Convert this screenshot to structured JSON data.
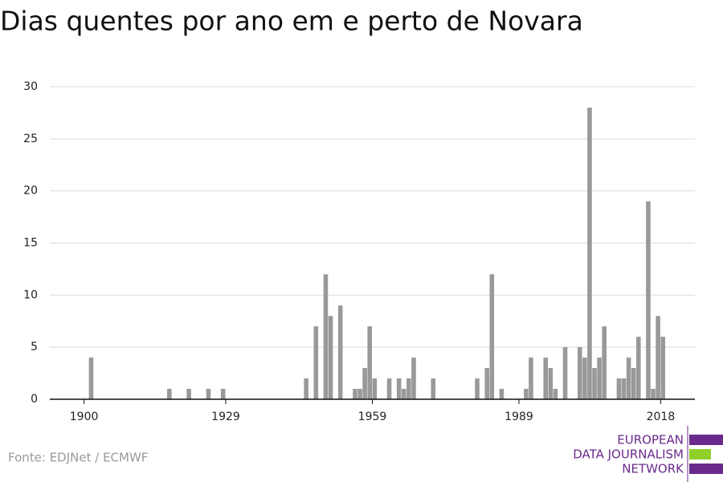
{
  "chart_data": {
    "type": "bar",
    "title": "Dias quentes por ano em e perto de Novara",
    "source": "Fonte: EDJNet / ECMWF",
    "logo": [
      "EUROPEAN",
      "DATA JOURNALISM",
      "NETWORK"
    ],
    "color": "#999999",
    "x": [
      1901,
      1917,
      1921,
      1925,
      1928,
      1945,
      1947,
      1949,
      1950,
      1952,
      1955,
      1956,
      1957,
      1958,
      1959,
      1962,
      1964,
      1965,
      1966,
      1967,
      1971,
      1980,
      1982,
      1983,
      1985,
      1990,
      1991,
      1994,
      1995,
      1996,
      1998,
      2001,
      2002,
      2003,
      2004,
      2005,
      2006,
      2009,
      2010,
      2011,
      2012,
      2013,
      2015,
      2016,
      2017,
      2018
    ],
    "values": [
      4,
      1,
      1,
      1,
      1,
      2,
      7,
      12,
      8,
      9,
      1,
      1,
      3,
      7,
      2,
      2,
      2,
      1,
      2,
      4,
      2,
      2,
      3,
      12,
      1,
      1,
      4,
      4,
      3,
      1,
      5,
      5,
      4,
      28,
      3,
      4,
      7,
      2,
      2,
      4,
      3,
      6,
      19,
      1,
      8,
      6
    ],
    "xlim": [
      1893,
      2025
    ],
    "xticks": [
      1900,
      1929,
      1959,
      1989,
      2018
    ],
    "ylim": [
      0,
      30
    ],
    "yticks": [
      0,
      5,
      10,
      15,
      20,
      25,
      30
    ],
    "grid": true
  }
}
